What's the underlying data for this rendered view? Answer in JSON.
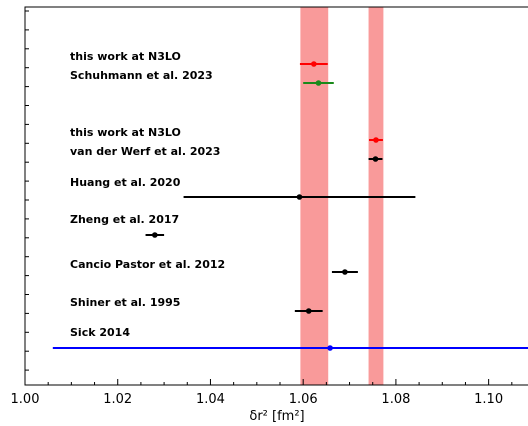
{
  "chart_data": {
    "type": "scatter",
    "title": "",
    "xlabel": "δr² [fm²]",
    "ylabel": "",
    "xlim": [
      1.0,
      1.11
    ],
    "xticks": [
      "1.00",
      "1.02",
      "1.04",
      "1.06",
      "1.08",
      "1.10"
    ],
    "xtick_values": [
      1.0,
      1.02,
      1.04,
      1.06,
      1.08,
      1.1
    ],
    "grid": false,
    "legend": "none",
    "bands": [
      {
        "xmin": 1.0594,
        "xmax": 1.0654,
        "color": "#f99a9a"
      },
      {
        "xmin": 1.0741,
        "xmax": 1.0773,
        "color": "#f99a9a"
      }
    ],
    "points": [
      {
        "label": "this work at N3LO",
        "x": 1.0623,
        "xerr_low": 0.003,
        "xerr_high": 0.003,
        "color": "#ff0000",
        "row": 0
      },
      {
        "label": "Schuhmann et al. 2023",
        "x": 1.0633,
        "xerr_low": 0.0033,
        "xerr_high": 0.0033,
        "color": "#1a8a1a",
        "row": 1
      },
      {
        "label": "this work at N3LO",
        "x": 1.0757,
        "xerr_low": 0.0015,
        "xerr_high": 0.0015,
        "color": "#ff0000",
        "row": 2
      },
      {
        "label": "van der Werf et al. 2023",
        "x": 1.0756,
        "xerr_low": 0.0015,
        "xerr_high": 0.0015,
        "color": "#000000",
        "row": 3
      },
      {
        "label": "Huang et al. 2020",
        "x": 1.0592,
        "xerr_low": 0.025,
        "xerr_high": 0.025,
        "color": "#000000",
        "row": 4
      },
      {
        "label": "Zheng et al. 2017",
        "x": 1.028,
        "xerr_low": 0.002,
        "xerr_high": 0.002,
        "color": "#000000",
        "row": 5
      },
      {
        "label": "Cancio Pastor et al. 2012",
        "x": 1.069,
        "xerr_low": 0.0028,
        "xerr_high": 0.0028,
        "color": "#000000",
        "row": 6
      },
      {
        "label": "Shiner et al. 1995",
        "x": 1.0612,
        "xerr_low": 0.003,
        "xerr_high": 0.003,
        "color": "#000000",
        "row": 7
      },
      {
        "label": "Sick 2014",
        "x": 1.0658,
        "xerr_low": 0.0598,
        "xerr_high": 0.06,
        "color": "#0000ff",
        "row": 8
      }
    ]
  }
}
